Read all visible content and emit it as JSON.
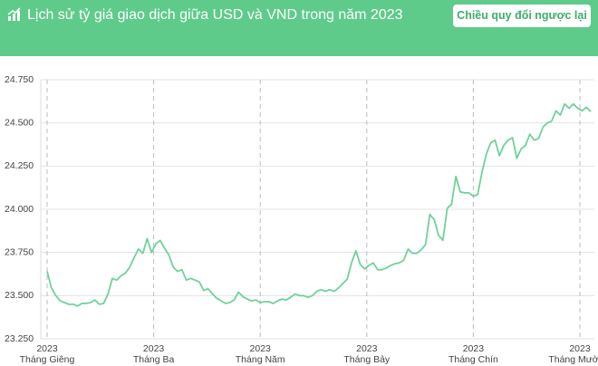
{
  "controls": {
    "toggle_button": "Chiều quy đổi ngược lại"
  },
  "chart_data": {
    "type": "line",
    "title": "Lịch sử tỷ giá giao dịch giữa USD và VND trong năm 2023",
    "color": "#6fd29a",
    "ylim": [
      23250,
      24750
    ],
    "yticks": [
      {
        "value": 23250,
        "label": "23.250"
      },
      {
        "value": 23500,
        "label": "23.500"
      },
      {
        "value": 23750,
        "label": "23.750"
      },
      {
        "value": 24000,
        "label": "24.000"
      },
      {
        "value": 24250,
        "label": "24.250"
      },
      {
        "value": 24500,
        "label": "24.500"
      },
      {
        "value": 24750,
        "label": "24.750"
      }
    ],
    "xtick_labels": [
      {
        "year": "2023",
        "month": "Tháng Giêng"
      },
      {
        "year": "2023",
        "month": "Tháng Ba"
      },
      {
        "year": "2023",
        "month": "Tháng Năm"
      },
      {
        "year": "2023",
        "month": "Tháng Bảy"
      },
      {
        "year": "2023",
        "month": "Tháng Chín"
      },
      {
        "year": "2023",
        "month": "Tháng Mười ..."
      }
    ],
    "grid": true,
    "values": [
      23640,
      23545,
      23500,
      23470,
      23460,
      23450,
      23450,
      23440,
      23455,
      23455,
      23460,
      23475,
      23450,
      23455,
      23510,
      23600,
      23590,
      23615,
      23630,
      23665,
      23720,
      23770,
      23745,
      23830,
      23750,
      23800,
      23820,
      23775,
      23735,
      23665,
      23640,
      23650,
      23590,
      23600,
      23590,
      23580,
      23530,
      23540,
      23510,
      23485,
      23470,
      23455,
      23460,
      23475,
      23520,
      23495,
      23480,
      23470,
      23475,
      23460,
      23465,
      23465,
      23455,
      23470,
      23480,
      23475,
      23490,
      23510,
      23500,
      23500,
      23490,
      23500,
      23525,
      23535,
      23525,
      23535,
      23525,
      23545,
      23570,
      23595,
      23690,
      23760,
      23680,
      23655,
      23675,
      23690,
      23650,
      23650,
      23660,
      23675,
      23685,
      23690,
      23705,
      23770,
      23745,
      23745,
      23765,
      23795,
      23970,
      23940,
      23850,
      23820,
      24005,
      24030,
      24190,
      24100,
      24095,
      24095,
      24075,
      24085,
      24215,
      24320,
      24385,
      24400,
      24310,
      24370,
      24400,
      24415,
      24295,
      24350,
      24370,
      24435,
      24400,
      24410,
      24475,
      24500,
      24510,
      24570,
      24545,
      24610,
      24585,
      24610,
      24585,
      24570,
      24590,
      24565
    ]
  }
}
